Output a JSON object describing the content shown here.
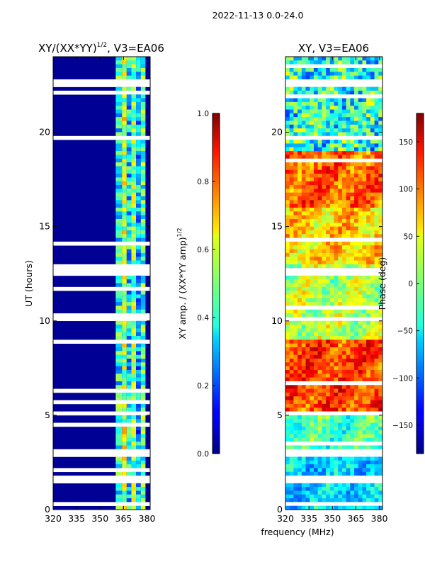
{
  "figure": {
    "suptitle": "2022-11-13 0.0-24.0",
    "shared_xlabel": "frequency (MHz)"
  },
  "chart_data": [
    {
      "type": "heatmap",
      "id": "amp",
      "title_main": "XY/(XX*YY)",
      "title_sup": "1/2",
      "title_tail": ", V3=EA06",
      "xlabel": "",
      "ylabel": "UT (hours)",
      "x_ticks": [
        320,
        335,
        350,
        365,
        380
      ],
      "xlim": [
        320,
        382
      ],
      "y_ticks": [
        0,
        5,
        10,
        15,
        20
      ],
      "ylim": [
        0,
        24
      ],
      "colormap": "jet",
      "colorbar": {
        "label_main": "XY amp. / (XX*YY amp)",
        "label_sup": "1/2",
        "ticks": [
          "0.0",
          "0.2",
          "0.4",
          "0.6",
          "0.8",
          "1.0"
        ],
        "tick_values": [
          0.0,
          0.2,
          0.4,
          0.6,
          0.8,
          1.0
        ],
        "range": [
          0.0,
          1.0
        ]
      },
      "background_value": 0.02,
      "signal_bands": [
        {
          "freq_range": [
            360,
            364
          ],
          "value": 0.4
        },
        {
          "freq_range": [
            364,
            367
          ],
          "value": 0.55
        },
        {
          "freq_range": [
            367,
            370
          ],
          "value": 0.35
        },
        {
          "freq_range": [
            370,
            373
          ],
          "value": 0.5
        },
        {
          "freq_range": [
            373,
            376
          ],
          "value": 0.3
        },
        {
          "freq_range": [
            376,
            379
          ],
          "value": 0.45
        }
      ],
      "flagged_time_ranges": [
        [
          22.5,
          22.8
        ],
        [
          19.6,
          19.9
        ],
        [
          12.4,
          12.7
        ],
        [
          9.9,
          10.1
        ],
        [
          5.0,
          5.2
        ],
        [
          2.9,
          3.2
        ],
        [
          1.5,
          1.7
        ],
        [
          0.2,
          0.4
        ]
      ]
    },
    {
      "type": "heatmap",
      "id": "phase",
      "title_main": "XY, V3=EA06",
      "title_sup": "",
      "title_tail": "",
      "xlabel": "",
      "ylabel": "",
      "x_ticks": [
        320,
        335,
        350,
        365,
        380
      ],
      "xlim": [
        320,
        382
      ],
      "y_ticks": [
        0,
        5,
        10,
        15,
        20
      ],
      "ylim": [
        0,
        24
      ],
      "colormap": "jet",
      "colorbar": {
        "label_main": "Phase (deg)",
        "label_sup": "",
        "ticks": [
          "−150",
          "−100",
          "−50",
          "0",
          "50",
          "100",
          "150"
        ],
        "tick_values": [
          -150,
          -100,
          -50,
          0,
          50,
          100,
          150
        ],
        "range": [
          -180,
          180
        ]
      },
      "phase_segments": [
        {
          "t_range": [
            0,
            3
          ],
          "value": -60
        },
        {
          "t_range": [
            3,
            5
          ],
          "value": -20
        },
        {
          "t_range": [
            5,
            9
          ],
          "value": 110
        },
        {
          "t_range": [
            9,
            13
          ],
          "value": 20
        },
        {
          "t_range": [
            13,
            16
          ],
          "value": 60
        },
        {
          "t_range": [
            16,
            19
          ],
          "value": 100
        },
        {
          "t_range": [
            19,
            24
          ],
          "value": -30
        }
      ],
      "flagged_time_ranges": [
        [
          22.5,
          22.8
        ],
        [
          19.6,
          19.9
        ],
        [
          12.4,
          12.7
        ],
        [
          9.9,
          10.1
        ],
        [
          5.0,
          5.2
        ],
        [
          2.9,
          3.2
        ],
        [
          1.5,
          1.7
        ],
        [
          0.2,
          0.4
        ]
      ]
    }
  ]
}
